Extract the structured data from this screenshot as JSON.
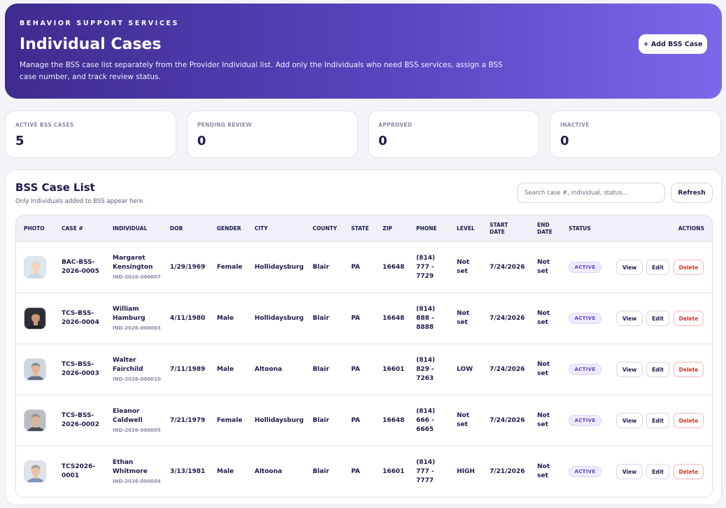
{
  "hero": {
    "eyebrow": "BEHAVIOR SUPPORT SERVICES",
    "title": "Individual Cases",
    "description": "Manage the BSS case list separately from the Provider Individual list. Add only the Individuals who need BSS services, assign a BSS case number, and track review status.",
    "add_button": "+ Add BSS Case"
  },
  "stats": [
    {
      "label": "ACTIVE BSS CASES",
      "value": "5"
    },
    {
      "label": "PENDING REVIEW",
      "value": "0"
    },
    {
      "label": "APPROVED",
      "value": "0"
    },
    {
      "label": "INACTIVE",
      "value": "0"
    }
  ],
  "panel": {
    "title": "BSS Case List",
    "subtitle": "Only Individuals added to BSS appear here.",
    "search_placeholder": "Search case #, individual, status...",
    "refresh_label": "Refresh"
  },
  "table": {
    "headers": {
      "photo": "PHOTO",
      "case": "CASE #",
      "individual": "INDIVIDUAL",
      "dob": "DOB",
      "gender": "GENDER",
      "city": "CITY",
      "county": "COUNTY",
      "state": "STATE",
      "zip": "ZIP",
      "phone": "PHONE",
      "level": "LEVEL",
      "start": "START DATE",
      "end": "END DATE",
      "status": "STATUS",
      "actions": "ACTIONS"
    },
    "action_labels": {
      "view": "View",
      "edit": "Edit",
      "delete": "Delete"
    },
    "rows": [
      {
        "case": "BAC-BSS-2026-0005",
        "name": "Margaret Kensington",
        "ind_id": "IND-2026-000007",
        "dob": "1/29/1969",
        "gender": "Female",
        "city": "Hollidaysburg",
        "county": "Blair",
        "state": "PA",
        "zip": "16648",
        "phone": "(814) 777 - 7729",
        "level": "Not set",
        "start": "7/24/2026",
        "end": "Not set",
        "status": "ACTIVE",
        "avatar": "woman-silver"
      },
      {
        "case": "TCS-BSS-2026-0004",
        "name": "William Hamburg",
        "ind_id": "IND-2026-000003",
        "dob": "4/11/1980",
        "gender": "Male",
        "city": "Hollidaysburg",
        "county": "Blair",
        "state": "PA",
        "zip": "16648",
        "phone": "(814) 888 - 8888",
        "level": "Not set",
        "start": "7/24/2026",
        "end": "Not set",
        "status": "ACTIVE",
        "avatar": "man-dark"
      },
      {
        "case": "TCS-BSS-2026-0003",
        "name": "Walter Fairchild",
        "ind_id": "IND-2026-000010",
        "dob": "7/11/1989",
        "gender": "Male",
        "city": "Altoona",
        "county": "Blair",
        "state": "PA",
        "zip": "16601",
        "phone": "(814) 829 - 7263",
        "level": "LOW",
        "start": "7/24/2026",
        "end": "Not set",
        "status": "ACTIVE",
        "avatar": "man-gray"
      },
      {
        "case": "TCS-BSS-2026-0002",
        "name": "Eleanor Caldwell",
        "ind_id": "IND-2026-000005",
        "dob": "7/21/1979",
        "gender": "Female",
        "city": "Hollidaysburg",
        "county": "Blair",
        "state": "PA",
        "zip": "16648",
        "phone": "(814) 666 - 6665",
        "level": "Not set",
        "start": "7/24/2026",
        "end": "Not set",
        "status": "ACTIVE",
        "avatar": "woman-gray"
      },
      {
        "case": "TCS2026-0001",
        "name": "Ethan Whitmore",
        "ind_id": "IND-2026-000004",
        "dob": "3/13/1981",
        "gender": "Male",
        "city": "Altoona",
        "county": "Blair",
        "state": "PA",
        "zip": "16601",
        "phone": "(814) 777 - 7777",
        "level": "HIGH",
        "start": "7/21/2026",
        "end": "Not set",
        "status": "ACTIVE",
        "avatar": "man-light"
      }
    ]
  }
}
